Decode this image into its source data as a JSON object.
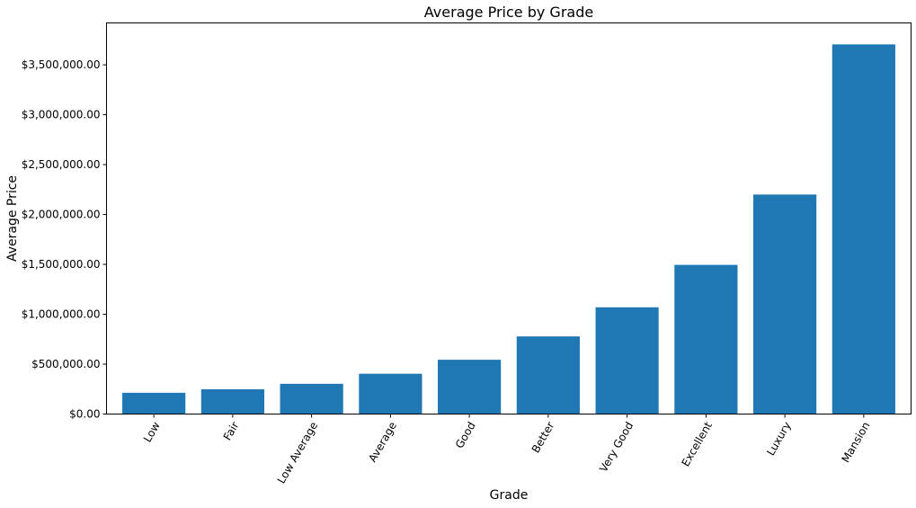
{
  "chart_data": {
    "type": "bar",
    "title": "Average Price by Grade",
    "xlabel": "Grade",
    "ylabel": "Average Price",
    "categories": [
      "Low",
      "Fair",
      "Low Average",
      "Average",
      "Good",
      "Better",
      "Very Good",
      "Excellent",
      "Luxury",
      "Mansion"
    ],
    "values": [
      213000,
      248000,
      303000,
      404000,
      544000,
      778000,
      1070000,
      1495000,
      2200000,
      3705000
    ],
    "ylim": [
      0,
      3920000
    ],
    "yticks": [
      0,
      500000,
      1000000,
      1500000,
      2000000,
      2500000,
      3000000,
      3500000
    ],
    "ytick_labels": [
      "$0.00",
      "$500,000.00",
      "$1,000,000.00",
      "$1,500,000.00",
      "$2,000,000.00",
      "$2,500,000.00",
      "$3,000,000.00",
      "$3,500,000.00"
    ],
    "bar_color": "#1f77b4",
    "grid": false,
    "xtick_rotation_deg": 60
  }
}
